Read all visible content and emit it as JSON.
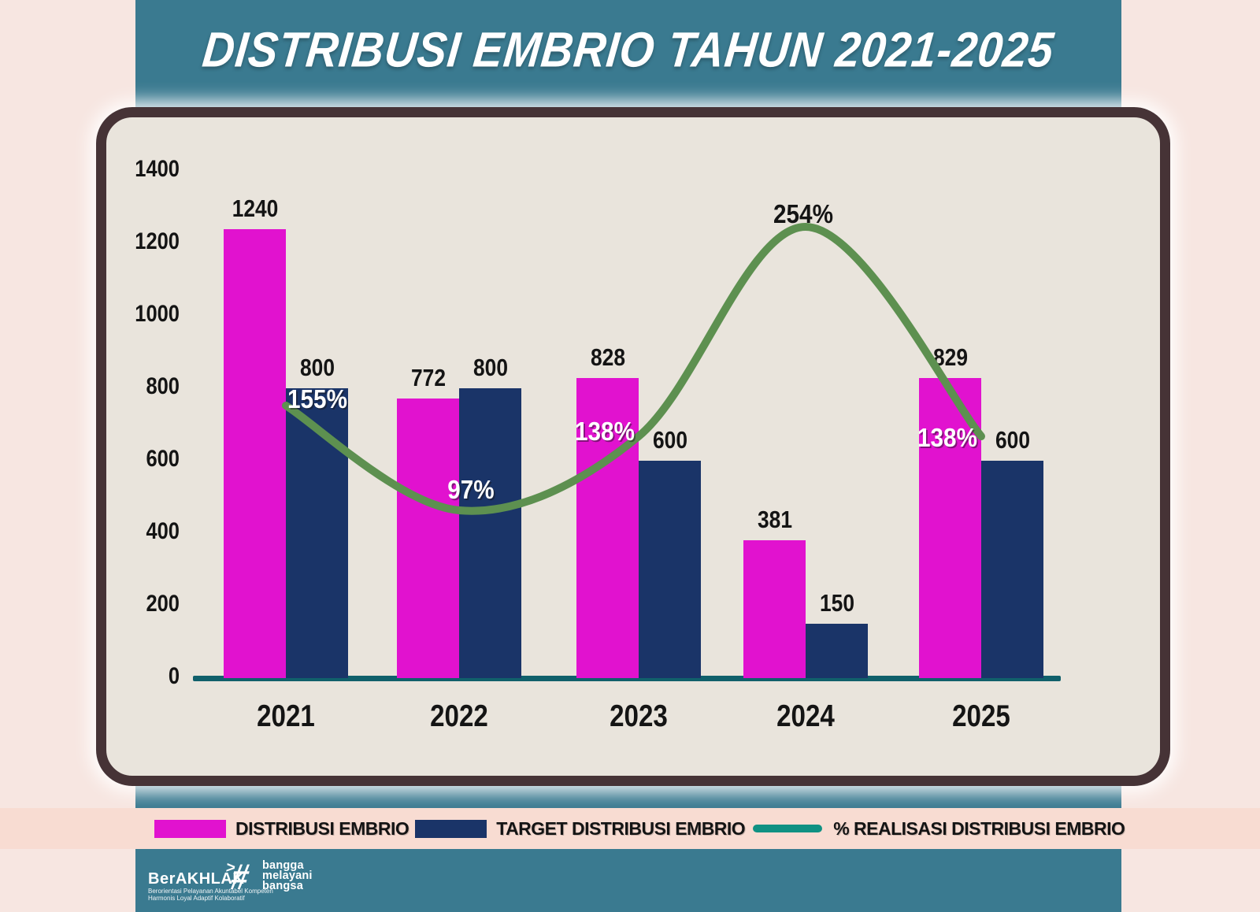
{
  "title": "DISTRIBUSI EMBRIO TAHUN 2021-2025",
  "chart_data": {
    "type": "bar",
    "subtype": "grouped-bars-with-line",
    "categories": [
      "2021",
      "2022",
      "2023",
      "2024",
      "2025"
    ],
    "series": [
      {
        "name": "DISTRIBUSI EMBRIO",
        "type": "bar",
        "color": "#e112cf",
        "values": [
          1240,
          772,
          828,
          381,
          829
        ]
      },
      {
        "name": "TARGET DISTRIBUSI EMBRIO",
        "type": "bar",
        "color": "#1a3468",
        "values": [
          800,
          800,
          600,
          150,
          600
        ]
      },
      {
        "name": "% REALISASI DISTRIBUSI EMBRIO",
        "type": "line",
        "color": "#5d9050",
        "values": [
          155,
          97,
          138,
          254,
          138
        ],
        "labels": [
          "155%",
          "97%",
          "138%",
          "254%",
          "138%"
        ]
      }
    ],
    "yticks": [
      1400,
      1200,
      1000,
      800,
      600,
      400,
      200,
      0
    ],
    "ylim": [
      0,
      1400
    ],
    "grid": false,
    "legend_position": "bottom"
  },
  "legend": {
    "items": [
      {
        "label": "DISTRIBUSI EMBRIO",
        "swatch": "magenta-rect",
        "color": "#e112cf"
      },
      {
        "label": "TARGET DISTRIBUSI EMBRIO",
        "swatch": "navy-rect",
        "color": "#1a3468"
      },
      {
        "label": "% REALISASI DISTRIBUSI EMBRIO",
        "swatch": "teal-line",
        "color": "#0f9183"
      }
    ]
  },
  "footer": {
    "brand": "BerAKHLAK",
    "brand_arrow": ">",
    "sub_line1": "Berorientasi Pelayanan Akuntabel Kompeten",
    "sub_line2": "Harmonis Loyal Adaptif Kolaboratif",
    "hashtag": "#",
    "tagline": [
      "bangga",
      "melayani",
      "bangsa"
    ]
  },
  "colors": {
    "page_pink": "#f7e6e1",
    "legend_strip_pink": "#f8dcd2",
    "teal_band": "#3a7a90",
    "panel_bg": "#e9e4dc",
    "panel_border": "#463336",
    "bar_magenta": "#e112cf",
    "bar_navy": "#1a3468",
    "line_green": "#5d9050",
    "legend_line_teal": "#0f9183",
    "axis_baseline": "#10606b",
    "label_black": "#141414",
    "label_white": "#ffffff"
  }
}
